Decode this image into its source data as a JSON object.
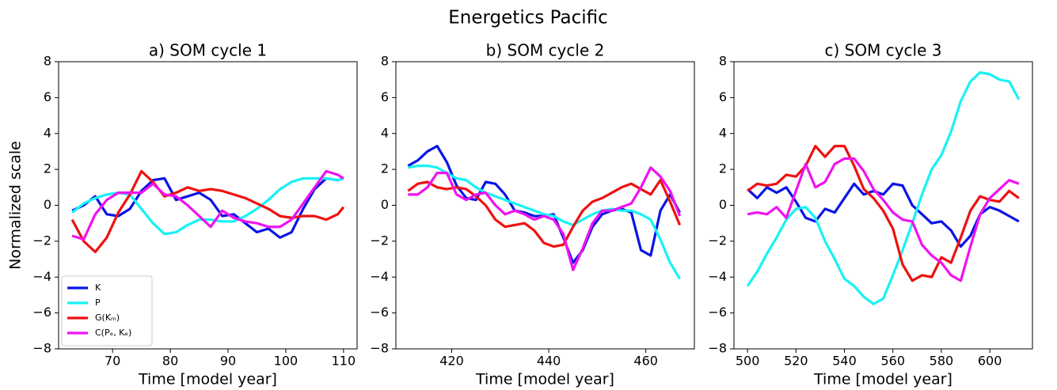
{
  "title": "Energetics Pacific",
  "chart_data": [
    {
      "type": "line",
      "title": "a) SOM cycle 1",
      "xlabel": "Time [model year]",
      "ylabel": "Normalized scale",
      "xlim": [
        60.65,
        112.35
      ],
      "ylim": [
        -8,
        8
      ],
      "xticks": [
        70,
        80,
        90,
        100,
        110
      ],
      "yticks": [
        {
          "value": -8,
          "label": "−8"
        },
        {
          "value": -6,
          "label": "−6"
        },
        {
          "value": -4,
          "label": "−4"
        },
        {
          "value": -2,
          "label": "−2"
        },
        0,
        2,
        4,
        6,
        8
      ],
      "legend": "lower left",
      "x": [
        63,
        65,
        67,
        69,
        71,
        73,
        75,
        77,
        79,
        81,
        83,
        85,
        87,
        89,
        91,
        93,
        95,
        97,
        99,
        101,
        103,
        105,
        107,
        109,
        110
      ],
      "series": [
        {
          "name": "K",
          "color": "#0a14e6",
          "values": [
            -0.3,
            0,
            0.5,
            -0.5,
            -0.6,
            -0.2,
            0.8,
            1.4,
            1.5,
            0.3,
            0.5,
            0.7,
            0.3,
            -0.6,
            -0.5,
            -1.0,
            -1.5,
            -1.3,
            -1.8,
            -1.5,
            -0.2,
            0.9,
            1.5,
            1.4,
            1.5
          ]
        },
        {
          "name": "P",
          "color": "#17f2f5",
          "values": [
            -0.4,
            0.1,
            0.4,
            0.6,
            0.7,
            0.6,
            -0.2,
            -1.0,
            -1.6,
            -1.5,
            -1.1,
            -0.8,
            -0.8,
            -0.9,
            -0.9,
            -0.6,
            -0.2,
            0.3,
            0.9,
            1.3,
            1.5,
            1.5,
            1.5,
            1.4,
            1.5
          ]
        },
        {
          "name": "G(Kₘ)",
          "color": "#ee1111",
          "values": [
            -0.8,
            -2.0,
            -2.6,
            -1.8,
            -0.4,
            0.6,
            1.9,
            1.3,
            0.5,
            0.7,
            1.0,
            0.8,
            0.9,
            0.8,
            0.6,
            0.4,
            0.1,
            -0.2,
            -0.6,
            -0.7,
            -0.6,
            -0.6,
            -0.8,
            -0.5,
            -0.1
          ]
        },
        {
          "name": "C(Pₑ, Kₑ)",
          "color": "#f012f0",
          "values": [
            -1.7,
            -1.9,
            -0.5,
            0.3,
            0.7,
            0.7,
            0.7,
            1.2,
            0.6,
            0.5,
            0.0,
            -0.6,
            -1.2,
            -0.3,
            -0.7,
            -0.9,
            -1.0,
            -1.2,
            -1.2,
            -0.8,
            0.1,
            1.0,
            1.9,
            1.7,
            1.5
          ]
        }
      ]
    },
    {
      "type": "line",
      "title": "b) SOM cycle 2",
      "xlabel": "Time [model year]",
      "xlim": [
        408.5,
        470
      ],
      "ylim": [
        -8,
        8
      ],
      "xticks": [
        420,
        440,
        460
      ],
      "yticks": [
        {
          "value": -8,
          "label": "−8"
        },
        {
          "value": -6,
          "label": "−6"
        },
        {
          "value": -4,
          "label": "−4"
        },
        {
          "value": -2,
          "label": "−2"
        },
        0,
        2,
        4,
        6,
        8
      ],
      "x": [
        411,
        413,
        415,
        417,
        419,
        421,
        423,
        425,
        427,
        429,
        431,
        433,
        435,
        437,
        439,
        441,
        443,
        445,
        447,
        449,
        451,
        453,
        455,
        457,
        459,
        461,
        463,
        465,
        467
      ],
      "series": [
        {
          "color": "#0a14e6",
          "values": [
            2.2,
            2.5,
            3.0,
            3.3,
            2.4,
            1.1,
            0.4,
            0.3,
            1.3,
            1.2,
            0.6,
            -0.3,
            -0.4,
            -0.6,
            -0.6,
            -0.5,
            -1.8,
            -3.2,
            -2.5,
            -1.2,
            -0.5,
            -0.3,
            -0.2,
            -0.4,
            -2.5,
            -2.8,
            -0.3,
            0.6,
            -0.4
          ]
        },
        {
          "color": "#17f2f5",
          "values": [
            2.1,
            2.2,
            2.2,
            2.1,
            1.8,
            1.5,
            1.4,
            1.0,
            0.7,
            0.5,
            0.3,
            0.1,
            -0.1,
            -0.3,
            -0.5,
            -0.6,
            -0.9,
            -1.1,
            -0.8,
            -0.5,
            -0.3,
            -0.2,
            -0.3,
            -0.3,
            -0.5,
            -0.8,
            -1.9,
            -3.2,
            -4.1
          ]
        },
        {
          "color": "#ee1111",
          "values": [
            0.8,
            1.2,
            1.3,
            1.0,
            0.9,
            1.0,
            0.9,
            0.5,
            0.0,
            -0.8,
            -1.2,
            -1.1,
            -1.0,
            -1.4,
            -2.1,
            -2.3,
            -2.2,
            -1.2,
            -0.3,
            0.2,
            0.4,
            0.7,
            1.0,
            1.2,
            0.9,
            0.6,
            1.4,
            0.2,
            -1.1
          ]
        },
        {
          "color": "#f012f0",
          "values": [
            0.6,
            0.6,
            1.0,
            1.8,
            1.8,
            0.6,
            0.3,
            0.6,
            0.7,
            0.0,
            -0.5,
            -0.3,
            -0.5,
            -0.8,
            -0.6,
            -0.8,
            -1.6,
            -3.6,
            -2.4,
            -1.0,
            -0.3,
            -0.3,
            -0.1,
            0.1,
            1.0,
            2.1,
            1.6,
            0.8,
            -0.6
          ]
        }
      ]
    },
    {
      "type": "line",
      "title": "c) SOM cycle 3",
      "xlabel": "Time [model year]",
      "xlim": [
        494.4,
        617.6
      ],
      "ylim": [
        -8,
        8
      ],
      "xticks": [
        500,
        520,
        540,
        560,
        580,
        600
      ],
      "yticks": [
        {
          "value": -8,
          "label": "−8"
        },
        {
          "value": -6,
          "label": "−6"
        },
        {
          "value": -4,
          "label": "−4"
        },
        {
          "value": -2,
          "label": "−2"
        },
        0,
        2,
        4,
        6,
        8
      ],
      "x": [
        500,
        504,
        508,
        512,
        516,
        520,
        524,
        528,
        532,
        536,
        540,
        544,
        548,
        552,
        556,
        560,
        564,
        568,
        572,
        576,
        580,
        584,
        588,
        592,
        596,
        600,
        604,
        608,
        612
      ],
      "series": [
        {
          "color": "#0a14e6",
          "values": [
            0.9,
            0.4,
            1.0,
            0.7,
            1.0,
            0.2,
            -0.7,
            -0.9,
            -0.2,
            -0.4,
            0.4,
            1.2,
            0.6,
            0.8,
            0.6,
            1.2,
            1.1,
            0.0,
            -0.5,
            -1.0,
            -0.9,
            -1.4,
            -2.3,
            -1.7,
            -0.5,
            -0.1,
            -0.3,
            -0.6,
            -0.9
          ]
        },
        {
          "color": "#17f2f5",
          "values": [
            -4.5,
            -3.7,
            -2.7,
            -1.8,
            -0.8,
            -0.2,
            -0.1,
            -0.7,
            -2.0,
            -3.0,
            -4.1,
            -4.5,
            -5.1,
            -5.5,
            -5.2,
            -3.9,
            -2.5,
            -1.0,
            0.6,
            2.0,
            2.8,
            4.1,
            5.8,
            6.9,
            7.4,
            7.3,
            7.0,
            6.9,
            5.9
          ]
        },
        {
          "color": "#ee1111",
          "values": [
            0.8,
            1.2,
            1.1,
            1.2,
            1.7,
            1.6,
            2.2,
            3.3,
            2.7,
            3.3,
            3.3,
            2.2,
            0.9,
            0.4,
            -0.3,
            -1.3,
            -3.3,
            -4.2,
            -3.9,
            -4.0,
            -2.9,
            -3.2,
            -1.8,
            -0.3,
            0.5,
            0.3,
            0.2,
            0.8,
            0.4
          ]
        },
        {
          "color": "#f012f0",
          "values": [
            -0.5,
            -0.4,
            -0.5,
            -0.1,
            -0.7,
            0.8,
            2.3,
            1.0,
            1.3,
            2.3,
            2.6,
            2.6,
            1.9,
            0.9,
            0.3,
            -0.4,
            -0.8,
            -0.9,
            -2.2,
            -2.8,
            -3.2,
            -3.9,
            -4.2,
            -2.3,
            -0.5,
            0.4,
            0.9,
            1.4,
            1.2
          ]
        }
      ]
    }
  ]
}
